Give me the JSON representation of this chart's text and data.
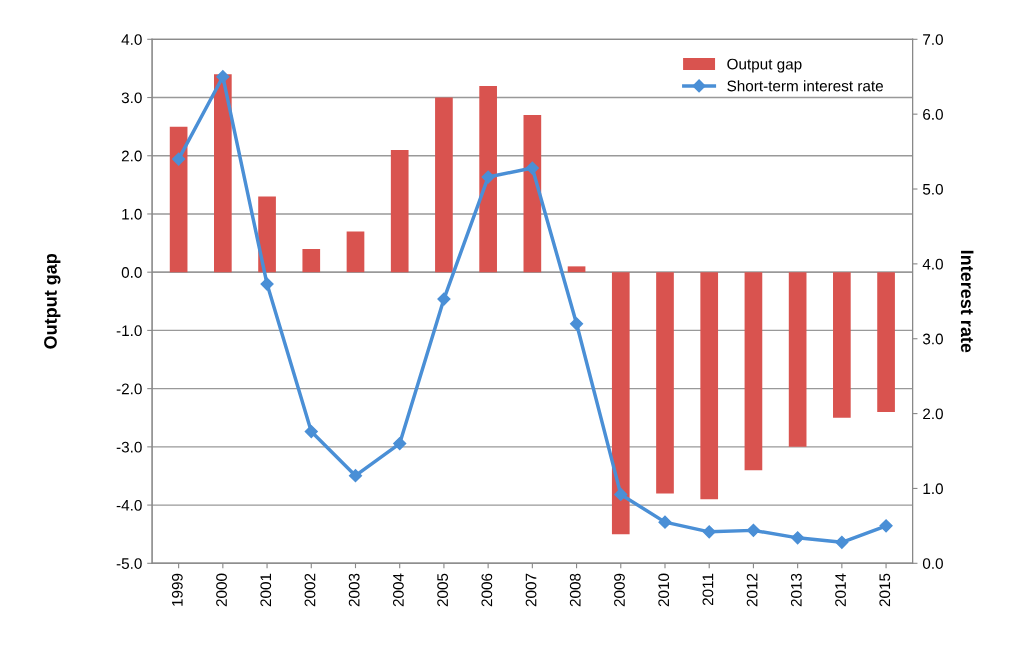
{
  "chart_data": {
    "type": "bar",
    "xlabel": null,
    "ylabel": "Output gap",
    "y2label": "Interest rate",
    "categories": [
      "1999",
      "2000",
      "2001",
      "2002",
      "2003",
      "2004",
      "2005",
      "2006",
      "2007",
      "2008",
      "2009",
      "2010",
      "2011",
      "2012",
      "2013",
      "2014",
      "2015"
    ],
    "series": [
      {
        "name": "Output gap",
        "color": "#d9534f",
        "values": [
          2.5,
          3.4,
          1.3,
          0.4,
          0.7,
          2.1,
          3.0,
          3.2,
          2.7,
          0.1,
          -4.5,
          -3.8,
          -3.9,
          -3.4,
          -3.0,
          -2.5,
          -2.4
        ]
      },
      {
        "name": "Short-term interest rate",
        "type": "line",
        "axis": "y2",
        "color": "#4a8fd6",
        "marker": "diamond",
        "values": [
          5.4,
          6.5,
          3.73,
          1.76,
          1.17,
          1.6,
          3.53,
          5.16,
          5.28,
          3.2,
          0.92,
          0.55,
          0.42,
          0.44,
          0.34,
          0.28,
          0.5
        ]
      }
    ],
    "ylim": [
      -5,
      4
    ],
    "yticks": [
      {
        "value": -5,
        "label": "-5.0"
      },
      {
        "value": -4,
        "label": "-4.0"
      },
      {
        "value": -3,
        "label": "-3.0"
      },
      {
        "value": -2,
        "label": "-2.0"
      },
      {
        "value": -1,
        "label": "-1.0"
      },
      {
        "value": 0,
        "label": "0.0"
      },
      {
        "value": 1,
        "label": "1.0"
      },
      {
        "value": 2,
        "label": "2.0"
      },
      {
        "value": 3,
        "label": "3.0"
      },
      {
        "value": 4,
        "label": "4.0"
      }
    ],
    "y2lim": [
      0,
      7
    ],
    "y2ticks": [
      {
        "value": 0,
        "label": "0.0"
      },
      {
        "value": 1,
        "label": "1.0"
      },
      {
        "value": 2,
        "label": "2.0"
      },
      {
        "value": 3,
        "label": "3.0"
      },
      {
        "value": 4,
        "label": "4.0"
      },
      {
        "value": 5,
        "label": "5.0"
      },
      {
        "value": 6,
        "label": "6.0"
      },
      {
        "value": 7,
        "label": "7.0"
      }
    ],
    "grid": "y",
    "legend": "top right"
  }
}
